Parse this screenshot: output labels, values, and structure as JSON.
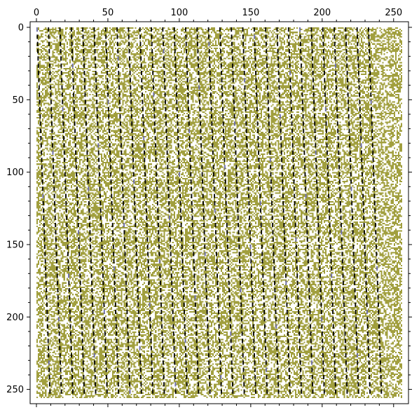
{
  "chart_data": {
    "type": "heatmap",
    "title": "",
    "xlabel": "",
    "ylabel": "",
    "xlim": [
      0,
      256
    ],
    "ylim": [
      0,
      256
    ],
    "y_inverted": true,
    "x_axis_position": "top",
    "grid": false,
    "x_ticks": [
      {
        "value": 0,
        "label": "0"
      },
      {
        "value": 50,
        "label": "50"
      },
      {
        "value": 100,
        "label": "100"
      },
      {
        "value": 150,
        "label": "150"
      },
      {
        "value": 200,
        "label": "200"
      },
      {
        "value": 250,
        "label": "250"
      }
    ],
    "y_ticks": [
      {
        "value": 0,
        "label": "0"
      },
      {
        "value": 50,
        "label": "50"
      },
      {
        "value": 100,
        "label": "100"
      },
      {
        "value": 150,
        "label": "150"
      },
      {
        "value": 200,
        "label": "200"
      },
      {
        "value": 250,
        "label": "250"
      }
    ],
    "minor_tick_step": 10,
    "matrix_size": [
      256,
      256
    ],
    "colors": {
      "background": "#ffffff",
      "nonzero": "#a19f3e",
      "secondary": "#6a6aab",
      "stripe": "#000000"
    },
    "stripes": {
      "count": 30,
      "first_column": 0,
      "column_spacing": 8.0,
      "slope_columns_per_row": 0.036,
      "segment_rows": 3,
      "gap_rows": 2
    }
  }
}
